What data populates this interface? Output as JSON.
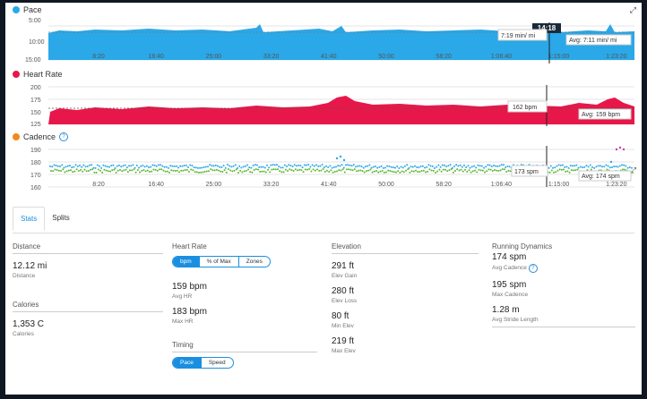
{
  "charts": {
    "pace": {
      "title": "Pace",
      "color": "#2aa8e8",
      "yticks": [
        "5:00",
        "10:00",
        "15:00"
      ],
      "cursor_time": "14:18",
      "tip": "7:19 min/ mi",
      "avg": "Avg: 7:11 min/ mi"
    },
    "hr": {
      "title": "Heart Rate",
      "color": "#e8174a",
      "yticks": [
        "200",
        "175",
        "150",
        "125"
      ],
      "tip": "162 bpm",
      "avg": "Avg: 159 bpm"
    },
    "cadence": {
      "title": "Cadence",
      "color": "#f08a1c",
      "yticks": [
        "190",
        "180",
        "170",
        "160"
      ],
      "tip": "173 spm",
      "avg": "Avg: 174 spm"
    },
    "xticks": [
      "8:20",
      "16:40",
      "25:00",
      "33:20",
      "41:40",
      "50:00",
      "58:20",
      "1:06:40",
      "1:15:00",
      "1:23:20"
    ]
  },
  "icons": {
    "expand": "expand-icon",
    "help": "help-circle-icon"
  },
  "tabs": [
    "Stats",
    "Splits"
  ],
  "stats": {
    "distance": {
      "title": "Distance",
      "value": "12.12 mi",
      "label": "Distance"
    },
    "calories": {
      "title": "Calories",
      "value": "1,353 C",
      "label": "Calories"
    },
    "heart_rate": {
      "title": "Heart Rate",
      "toggle": [
        "bpm",
        "% of Max",
        "Zones"
      ],
      "avg": {
        "value": "159 bpm",
        "label": "Avg HR"
      },
      "max": {
        "value": "183 bpm",
        "label": "Max HR"
      }
    },
    "timing": {
      "title": "Timing",
      "toggle": [
        "Pace",
        "Speed"
      ]
    },
    "elevation": {
      "title": "Elevation",
      "items": [
        {
          "value": "291 ft",
          "label": "Elev Gain"
        },
        {
          "value": "280 ft",
          "label": "Elev Loss"
        },
        {
          "value": "80 ft",
          "label": "Min Elev"
        },
        {
          "value": "219 ft",
          "label": "Max Elev"
        }
      ]
    },
    "running_dynamics": {
      "title": "Running Dynamics",
      "items": [
        {
          "value": "174 spm",
          "label": "Avg Cadence"
        },
        {
          "value": "195 spm",
          "label": "Max Cadence"
        },
        {
          "value": "1.28 m",
          "label": "Avg Stride Length"
        }
      ]
    }
  }
}
